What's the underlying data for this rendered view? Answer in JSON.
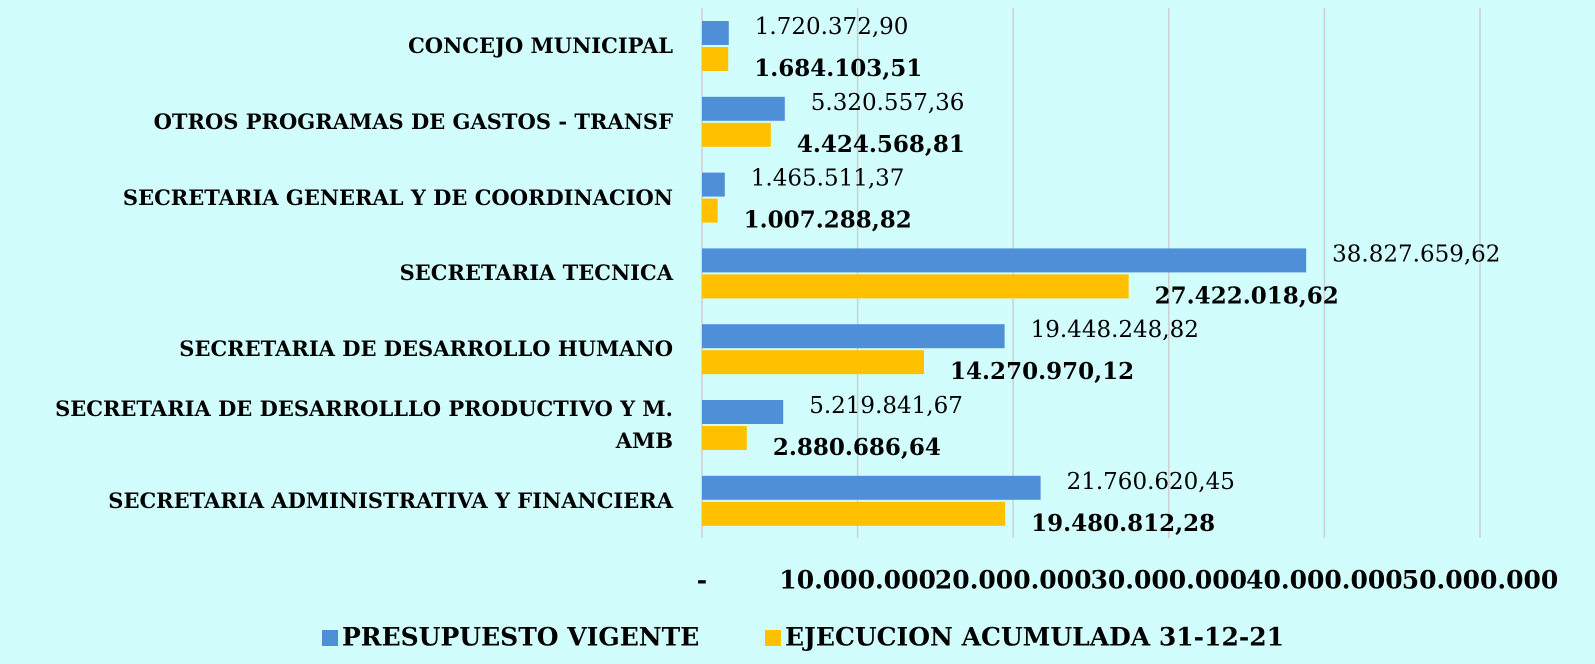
{
  "chart_data": {
    "type": "hbar",
    "categories": [
      "CONCEJO MUNICIPAL",
      "OTROS PROGRAMAS DE GASTOS - TRANSF",
      "SECRETARIA GENERAL Y DE COORDINACION",
      "SECRETARIA TECNICA",
      "SECRETARIA DE DESARROLLO HUMANO",
      "SECRETARIA DE DESARROLLLO PRODUCTIVO Y M. AMB",
      "SECRETARIA ADMINISTRATIVA Y FINANCIERA"
    ],
    "series": [
      {
        "name": "PRESUPUESTO VIGENTE",
        "color": "#4f8fd8",
        "values": [
          1720372.9,
          5320557.36,
          1465511.37,
          38827659.62,
          19448248.82,
          5219841.67,
          21760620.45
        ],
        "value_labels": [
          "1.720.372,90",
          "5.320.557,36",
          "1.465.511,37",
          "38.827.659,62",
          "19.448.248,82",
          "5.219.841,67",
          "21.760.620,45"
        ]
      },
      {
        "name": "EJECUCION ACUMULADA 31-12-21",
        "color": "#ffc000",
        "values": [
          1684103.51,
          4424568.81,
          1007288.82,
          27422018.62,
          14270970.12,
          2880686.64,
          19480812.28
        ],
        "value_labels": [
          "1.684.103,51",
          "4.424.568,81",
          "1.007.288,82",
          "27.422.018,62",
          "14.270.970,12",
          "2.880.686,64",
          "19.480.812,28"
        ]
      }
    ],
    "xlim": [
      0,
      50000000
    ],
    "xticks": [
      {
        "value": 0,
        "label": "-"
      },
      {
        "value": 10000000,
        "label": "10.000.000"
      },
      {
        "value": 20000000,
        "label": "20.000.000"
      },
      {
        "value": 30000000,
        "label": "30.000.000"
      },
      {
        "value": 40000000,
        "label": "40.000.000"
      },
      {
        "value": 50000000,
        "label": "50.000.000"
      }
    ],
    "grid": true,
    "legend": "bottom"
  }
}
